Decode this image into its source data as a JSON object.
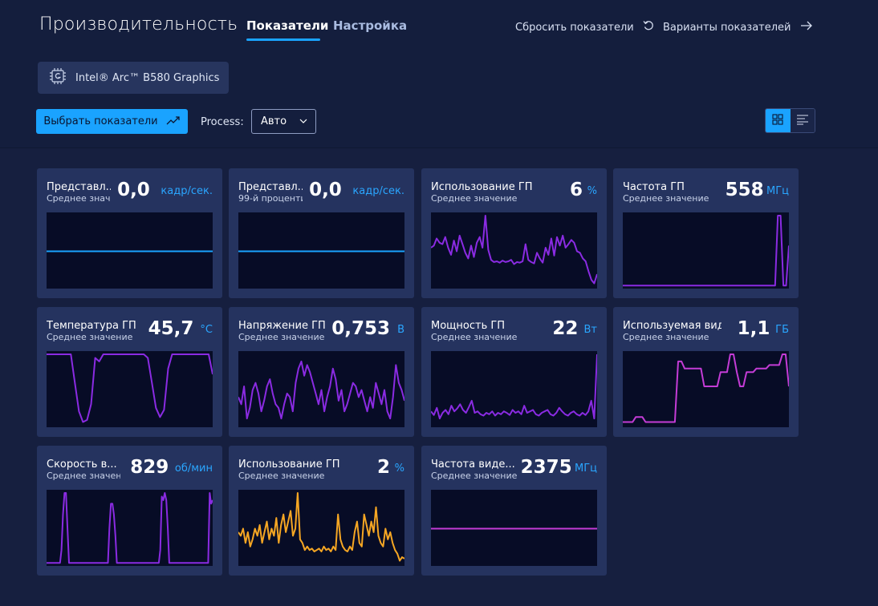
{
  "header": {
    "title": "Производительность",
    "tabs": [
      {
        "label": "Показатели",
        "active": true
      },
      {
        "label": "Настройка",
        "active": false
      }
    ],
    "reset_label": "Сбросить показатели",
    "variants_label": "Варианты показателей"
  },
  "gpu": {
    "name": "Intel® Arc™ B580 Graphics",
    "icon": "chip-g-icon"
  },
  "toolbar": {
    "select_metrics_label": "Выбрать показатели",
    "process_label": "Process:",
    "process_value": "Авто",
    "view_modes": [
      "grid-icon",
      "list-icon"
    ]
  },
  "colors": {
    "accent": "#1aa3ff",
    "purple": "#8a2be2",
    "magenta": "#c43cd6",
    "orange": "#f5a623"
  },
  "cards": [
    {
      "title": "Представл...",
      "sub": "Среднее значение",
      "value": "0,0",
      "unit": "кадр/сек.",
      "color": "#1aa3ff",
      "series": [
        50,
        50,
        50,
        50,
        50,
        50,
        50,
        50,
        50,
        50
      ]
    },
    {
      "title": "Представл...",
      "sub": "99-й процентил",
      "value": "0,0",
      "unit": "кадр/сек.",
      "color": "#1aa3ff",
      "series": [
        50,
        50,
        50,
        50,
        50,
        50,
        50,
        50,
        50,
        50
      ]
    },
    {
      "title": "Использование ГП",
      "sub": "Среднее значение",
      "value": "6",
      "unit": "%",
      "color": "#8a2be2",
      "series": [
        55,
        58,
        68,
        62,
        60,
        70,
        55,
        45,
        65,
        50,
        72,
        60,
        48,
        40,
        58,
        42,
        62,
        70,
        55,
        100,
        52,
        38,
        35,
        36,
        34,
        37,
        35,
        36,
        38,
        32,
        35,
        34,
        36,
        60,
        38,
        35,
        33,
        48,
        40,
        34,
        55,
        45,
        68,
        44,
        70,
        58,
        72,
        55,
        60,
        66,
        62,
        50,
        48,
        40,
        36,
        22,
        10,
        5,
        18
      ]
    },
    {
      "title": "Частота ГП",
      "sub": "Среднее значение",
      "value": "558",
      "unit": "МГц",
      "color": "#8a2be2",
      "series": [
        2,
        2,
        2,
        2,
        2,
        2,
        2,
        2,
        2,
        2,
        2,
        2,
        2,
        2,
        2,
        2,
        2,
        2,
        2,
        2,
        2,
        2,
        2,
        2,
        2,
        2,
        2,
        2,
        2,
        2,
        2,
        2,
        2,
        2,
        2,
        2,
        2,
        2,
        2,
        2,
        2,
        2,
        2,
        2,
        2,
        2,
        2,
        2,
        2,
        2,
        2,
        2,
        2,
        2,
        2,
        2,
        100,
        100,
        2,
        2,
        58
      ]
    },
    {
      "title": "Температура ГП",
      "sub": "Среднее значение",
      "value": "45,7",
      "unit": "°C",
      "color": "#8a2be2",
      "series": [
        100,
        100,
        100,
        100,
        100,
        100,
        100,
        60,
        20,
        5,
        8,
        30,
        95,
        90,
        100,
        100,
        100,
        100,
        100,
        100,
        100,
        100,
        100,
        100,
        100,
        95,
        60,
        25,
        12,
        22,
        80,
        100,
        100,
        100,
        100,
        100,
        100,
        100,
        100,
        100,
        100,
        72
      ]
    },
    {
      "title": "Напряжение ГП",
      "sub": "Среднее значение",
      "value": "0,753",
      "unit": "В",
      "color": "#8a2be2",
      "series": [
        40,
        30,
        55,
        10,
        25,
        50,
        60,
        45,
        20,
        35,
        55,
        65,
        45,
        30,
        25,
        10,
        30,
        45,
        40,
        20,
        60,
        80,
        90,
        70,
        85,
        75,
        60,
        45,
        30,
        50,
        20,
        40,
        55,
        80,
        65,
        35,
        50,
        20,
        30,
        45,
        60,
        55,
        40,
        50,
        35,
        20,
        40,
        25,
        60,
        45,
        30,
        50,
        20,
        10,
        40,
        85,
        60,
        50,
        35
      ]
    },
    {
      "title": "Мощность ГП",
      "sub": "Среднее значение",
      "value": "22",
      "unit": "Вт",
      "color": "#8a2be2",
      "series": [
        20,
        15,
        25,
        10,
        18,
        22,
        16,
        28,
        20,
        24,
        30,
        22,
        18,
        26,
        35,
        18,
        20,
        16,
        14,
        18,
        16,
        20,
        14,
        18,
        16,
        20,
        18,
        15,
        22,
        18,
        20,
        16,
        28,
        18,
        20,
        22,
        16,
        14,
        18,
        20,
        22,
        16,
        14,
        18,
        25,
        20,
        16,
        14,
        18,
        20,
        16,
        14,
        18,
        15,
        20,
        35,
        10,
        100
      ]
    },
    {
      "title": "Используемая видео...",
      "sub": "Среднее значение",
      "value": "1,1",
      "unit": "ГБ",
      "color": "#c43cd6",
      "series": [
        5,
        5,
        5,
        5,
        12,
        12,
        12,
        5,
        5,
        5,
        5,
        5,
        5,
        5,
        5,
        5,
        5,
        90,
        90,
        80,
        80,
        80,
        80,
        80,
        80,
        55,
        55,
        55,
        55,
        55,
        75,
        75,
        75,
        100,
        100,
        75,
        55,
        55,
        75,
        75,
        75,
        80,
        80,
        80,
        80,
        85,
        85,
        85,
        85,
        100,
        100,
        55
      ]
    },
    {
      "title": "Скорость в...",
      "sub": "Среднее значен",
      "value": "829",
      "unit": "об/мин",
      "color": "#8a2be2",
      "series": [
        2,
        2,
        2,
        2,
        2,
        2,
        2,
        2,
        2,
        2,
        20,
        70,
        100,
        100,
        50,
        2,
        2,
        2,
        2,
        2,
        2,
        2,
        2,
        2,
        2,
        2,
        2,
        2,
        2,
        2,
        2,
        2,
        2,
        2,
        2,
        2,
        2,
        2,
        2,
        2,
        2,
        2,
        50,
        85,
        85,
        70,
        40,
        2,
        2,
        2,
        2,
        2,
        2,
        2,
        2,
        2,
        2,
        2,
        2,
        2,
        2,
        2,
        2,
        2,
        2,
        2,
        2,
        2,
        2,
        2,
        2,
        2,
        2,
        2,
        2,
        2,
        20,
        95,
        90,
        100,
        90,
        50,
        2,
        2,
        2,
        2,
        2,
        2,
        2,
        2,
        2,
        2,
        2,
        2,
        2,
        2,
        2,
        2,
        2,
        2,
        2,
        2,
        2,
        2,
        2,
        2,
        2,
        2,
        2,
        100,
        85,
        90
      ]
    },
    {
      "title": "Использование ГП дл...",
      "sub": "Среднее значение",
      "value": "2",
      "unit": "%",
      "color": "#f5a623",
      "series": [
        45,
        40,
        50,
        30,
        45,
        25,
        35,
        50,
        40,
        55,
        30,
        45,
        60,
        35,
        50,
        40,
        65,
        30,
        55,
        70,
        45,
        60,
        75,
        40,
        50,
        100,
        35,
        30,
        20,
        25,
        20,
        22,
        18,
        20,
        22,
        18,
        25,
        20,
        22,
        18,
        25,
        20,
        70,
        35,
        25,
        20,
        18,
        25,
        20,
        45,
        60,
        30,
        25,
        70,
        55,
        40,
        60,
        45,
        80,
        40,
        30,
        25,
        50,
        35,
        45,
        30,
        20,
        15,
        5,
        10,
        8
      ]
    },
    {
      "title": "Частота виде...",
      "sub": "Среднее значение",
      "value": "2375",
      "unit": "МГц",
      "color": "#c43cd6",
      "series": [
        50,
        50,
        50,
        50,
        50,
        50,
        50,
        50,
        50,
        50
      ]
    }
  ]
}
